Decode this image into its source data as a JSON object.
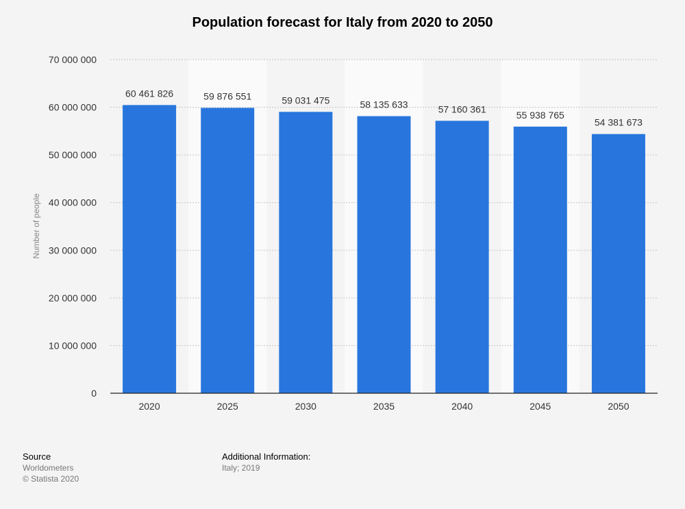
{
  "chart_data": {
    "type": "bar",
    "title": "Population forecast for Italy from 2020 to 2050",
    "xlabel": "",
    "ylabel": "Number of people",
    "categories": [
      "2020",
      "2025",
      "2030",
      "2035",
      "2040",
      "2045",
      "2050"
    ],
    "values": [
      60461826,
      59876551,
      59031475,
      58135633,
      57160361,
      55938765,
      54381673
    ],
    "value_labels": [
      "60 461 826",
      "59 876 551",
      "59 031 475",
      "58 135 633",
      "57 160 361",
      "55 938 765",
      "54 381 673"
    ],
    "ylim": [
      0,
      70000000
    ],
    "yticks": [
      0,
      10000000,
      20000000,
      30000000,
      40000000,
      50000000,
      60000000,
      70000000
    ],
    "ytick_labels": [
      "0",
      "10 000 000",
      "20 000 000",
      "30 000 000",
      "40 000 000",
      "50 000 000",
      "60 000 000",
      "70 000 000"
    ],
    "grid": true,
    "bar_color": "#2876dd",
    "alt_band_color": "#fafafa"
  },
  "footer": {
    "source_heading": "Source",
    "source_name": "Worldometers",
    "copyright": "© Statista 2020",
    "additional_heading": "Additional Information:",
    "additional_text": "Italy; 2019"
  }
}
